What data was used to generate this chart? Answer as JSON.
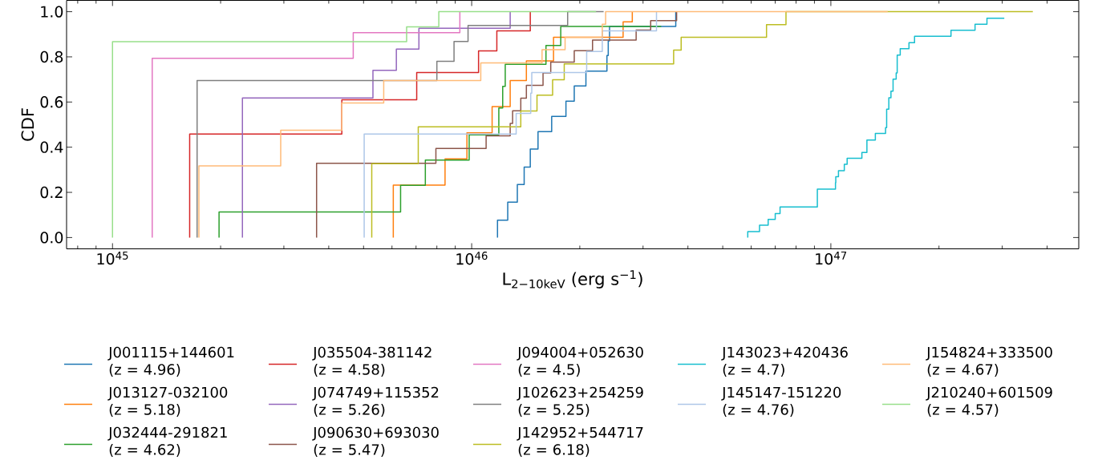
{
  "chart_data": {
    "type": "step",
    "xlabel": "L$_{2−10keV}$ (erg s$^{−1}$)",
    "ylabel": "CDF",
    "log": "x",
    "xlim": [
      7.45e+44,
      4.9e+47
    ],
    "ylim": [
      -0.05,
      1.05
    ],
    "xticks": [
      {
        "value": 1e+45,
        "label": "10$^{45}$"
      },
      {
        "value": 1e+46,
        "label": "10$^{46}$"
      },
      {
        "value": 1e+47,
        "label": "10$^{47}$"
      }
    ],
    "yticks": [
      {
        "value": 0,
        "label": "0.0"
      },
      {
        "value": 0.2,
        "label": "0.2"
      },
      {
        "value": 0.4,
        "label": "0.4"
      },
      {
        "value": 0.6,
        "label": "0.6"
      },
      {
        "value": 0.8,
        "label": "0.8"
      },
      {
        "value": 1.0,
        "label": "1.0"
      }
    ],
    "legend": "bottom",
    "series": [
      {
        "name": "J001115+144601 (z = 4.96)",
        "color": "#1f77b4",
        "x": [
          1.18e+46,
          1.18e+46,
          1.26e+46,
          1.34e+46,
          1.4e+46,
          1.456e+46,
          1.53e+46,
          1.67e+46,
          1.83e+46,
          1.93e+46,
          2.08e+46,
          2.38e+46,
          2.4e+46,
          2.42e+46,
          3.7e+46
        ],
        "values": [
          0,
          0.077,
          0.157,
          0.235,
          0.312,
          0.392,
          0.469,
          0.536,
          0.604,
          0.671,
          0.737,
          0.806,
          0.871,
          0.935,
          1.0
        ]
      },
      {
        "name": "J013127-032100 (z = 5.18)",
        "color": "#ff7f0e",
        "x": [
          6.05e+45,
          6.05e+45,
          8.43e+45,
          9.7e+45,
          1.14e+46,
          1.28e+46,
          1.42e+46,
          1.69e+46,
          2.64e+46,
          2.8e+46
        ],
        "values": [
          0,
          0.232,
          0.348,
          0.464,
          0.58,
          0.695,
          0.782,
          0.887,
          0.955,
          1.0
        ]
      },
      {
        "name": "J032444-291821 (z = 4.62)",
        "color": "#2ca02c",
        "x": [
          1.98e+45,
          1.98e+45,
          6.34e+45,
          7.43e+45,
          9.84e+45,
          1.19e+46,
          1.22e+46,
          1.24e+46,
          1.61e+46,
          1.77e+46,
          3.37e+46
        ],
        "values": [
          0,
          0.113,
          0.231,
          0.343,
          0.455,
          0.574,
          0.669,
          0.767,
          0.85,
          0.935,
          0.935
        ]
      },
      {
        "name": "J035504-381142 (z = 4.58)",
        "color": "#d62728",
        "x": [
          1.64e+45,
          1.64e+45,
          4.35e+45,
          7.03e+45,
          1.045e+46,
          1.175e+46,
          1.456e+46
        ],
        "values": [
          0,
          0.458,
          0.61,
          0.731,
          0.826,
          0.915,
          1.0
        ]
      },
      {
        "name": "J074749+115352 (z = 5.26)",
        "color": "#9467bd",
        "x": [
          2.3e+45,
          2.3e+45,
          5.31e+45,
          6.17e+45,
          7.13e+45,
          1.28e+46
        ],
        "values": [
          0,
          0.618,
          0.74,
          0.834,
          0.927,
          1.0
        ]
      },
      {
        "name": "J090630+693030 (z = 5.47)",
        "color": "#8c564b",
        "x": [
          3.7e+45,
          3.7e+45,
          7.95e+45,
          1.097e+46,
          1.28e+46,
          1.3e+46,
          1.37e+46,
          1.42e+46,
          1.58e+46,
          1.66e+46,
          1.93e+46,
          2.17e+46,
          2.87e+46,
          3.15e+46,
          3.72e+46
        ],
        "values": [
          0,
          0.329,
          0.394,
          0.45,
          0.505,
          0.561,
          0.617,
          0.674,
          0.729,
          0.777,
          0.827,
          0.874,
          0.919,
          0.96,
          1.0
        ]
      },
      {
        "name": "J094004+052630 (z = 4.5)",
        "color": "#e377c2",
        "x": [
          1.29e+45,
          1.29e+45,
          4.68e+45,
          9.27e+45
        ],
        "values": [
          0,
          0.794,
          0.907,
          1.0
        ]
      },
      {
        "name": "J102623+254259 (z = 5.25)",
        "color": "#7f7f7f",
        "x": [
          1.72e+45,
          1.72e+45,
          8e+45,
          8.93e+45,
          9.77e+45,
          1.85e+46,
          2.33e+46
        ],
        "values": [
          0,
          0.695,
          0.78,
          0.868,
          0.939,
          1.0,
          1.0
        ]
      },
      {
        "name": "J142952+544717 (z = 6.18)",
        "color": "#bcbd22",
        "x": [
          5.27e+45,
          5.27e+45,
          7.1e+45,
          1.37e+46,
          1.52e+46,
          1.68e+46,
          1.81e+46,
          3.65e+46,
          3.83e+46,
          6.62e+46,
          7.5e+46,
          3.65e+47
        ],
        "values": [
          0,
          0.327,
          0.49,
          0.56,
          0.63,
          0.699,
          0.769,
          0.83,
          0.887,
          0.943,
          1.0,
          1.0
        ]
      },
      {
        "name": "J143023+420436 (z = 4.7)",
        "color": "#17becf",
        "x": [
          5.87e+46,
          5.87e+46,
          6.33e+46,
          6.69e+46,
          7e+46,
          7.22e+46,
          9.17e+46,
          1.03e+47,
          1.032e+47,
          1.05e+47,
          1.09e+47,
          1.11e+47,
          1.22e+47,
          1.26e+47,
          1.33e+47,
          1.42e+47,
          1.43e+47,
          1.45e+47,
          1.47e+47,
          1.49e+47,
          1.52e+47,
          1.53e+47,
          1.56e+47,
          1.65e+47,
          1.71e+47,
          2.16e+47,
          2.52e+47,
          2.72e+47,
          3.04e+47
        ],
        "values": [
          0,
          0.026,
          0.055,
          0.08,
          0.106,
          0.135,
          0.214,
          0.243,
          0.269,
          0.296,
          0.324,
          0.351,
          0.377,
          0.432,
          0.461,
          0.487,
          0.568,
          0.619,
          0.648,
          0.701,
          0.729,
          0.808,
          0.836,
          0.863,
          0.891,
          0.918,
          0.944,
          0.971,
          0.971
        ]
      },
      {
        "name": "J145147-151220 (z = 4.76)",
        "color": "#aec7e8",
        "x": [
          5.02e+45,
          5.02e+45,
          1.33e+46,
          1.46e+46,
          1.47e+46,
          2.09e+46,
          2.31e+46,
          3.27e+46
        ],
        "values": [
          0,
          0.458,
          0.55,
          0.639,
          0.731,
          0.824,
          0.915,
          1.0
        ]
      },
      {
        "name": "J154824+333500 (z = 4.67)",
        "color": "#ffbb78",
        "x": [
          1.74e+45,
          1.74e+45,
          2.94e+45,
          4.35e+45,
          5.69e+45,
          1.06e+46,
          1.57e+46,
          1.82e+46,
          2.31e+46,
          2.36e+46,
          1.44e+47
        ],
        "values": [
          0,
          0.317,
          0.475,
          0.596,
          0.695,
          0.773,
          0.832,
          0.887,
          0.944,
          1.0,
          1.0
        ]
      },
      {
        "name": "J210240+601509 (z = 4.57)",
        "color": "#98df8a",
        "x": [
          1e+45,
          1e+45,
          6.59e+45,
          8.1e+45,
          2.22e+46
        ],
        "values": [
          0,
          0.867,
          0.933,
          1.0,
          1.0
        ]
      }
    ]
  }
}
